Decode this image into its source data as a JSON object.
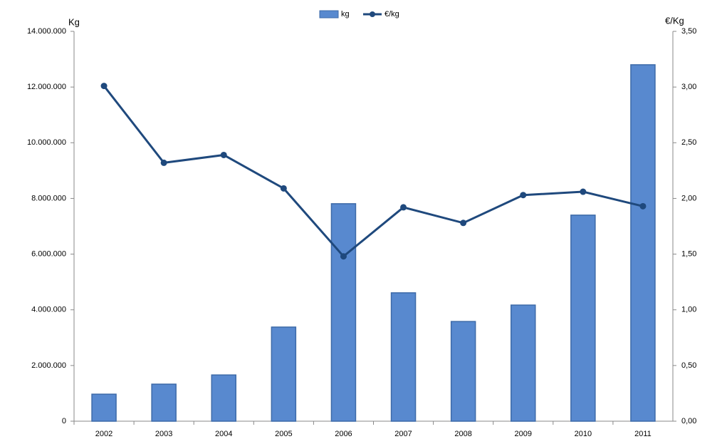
{
  "chart_data": {
    "type": "combo",
    "categories": [
      "2002",
      "2003",
      "2004",
      "2005",
      "2006",
      "2007",
      "2008",
      "2009",
      "2010",
      "2011"
    ],
    "series": [
      {
        "name": "kg",
        "color": "#5889cf",
        "values": [
          970000,
          1330000,
          1660000,
          3380000,
          7810000,
          4610000,
          3580000,
          4170000,
          7400000,
          12800000
        ]
      },
      {
        "name": "€/kg",
        "color": "#1f497d",
        "axis": "y2",
        "values": [
          3.01,
          2.32,
          2.39,
          2.09,
          1.48,
          1.92,
          1.78,
          2.03,
          2.06,
          1.93
        ]
      }
    ],
    "y_label": "Kg",
    "y2_label": "€/Kg",
    "ylim": [
      0,
      14000000
    ],
    "yticks": [
      0,
      {
        "value": 2000000,
        "label": "2.000.000"
      },
      {
        "value": 4000000,
        "label": "4.000.000"
      },
      {
        "value": 6000000,
        "label": "6.000.000"
      },
      {
        "value": 8000000,
        "label": "8.000.000"
      },
      {
        "value": 10000000,
        "label": "10.000.000"
      },
      {
        "value": 12000000,
        "label": "12.000.000"
      },
      {
        "value": 14000000,
        "label": "14.000.000"
      }
    ],
    "y2lim": [
      0,
      3.5
    ],
    "y2ticks": [
      {
        "value": 0,
        "label": "0,00"
      },
      {
        "value": 0.5,
        "label": "0,50"
      },
      {
        "value": 1,
        "label": "1,00"
      },
      {
        "value": 1.5,
        "label": "1,50"
      },
      {
        "value": 2,
        "label": "2,00"
      },
      {
        "value": 2.5,
        "label": "2,50"
      },
      {
        "value": 3,
        "label": "3,00"
      },
      {
        "value": 3.5,
        "label": "3,50"
      }
    ],
    "legend": "top",
    "grid": false
  }
}
